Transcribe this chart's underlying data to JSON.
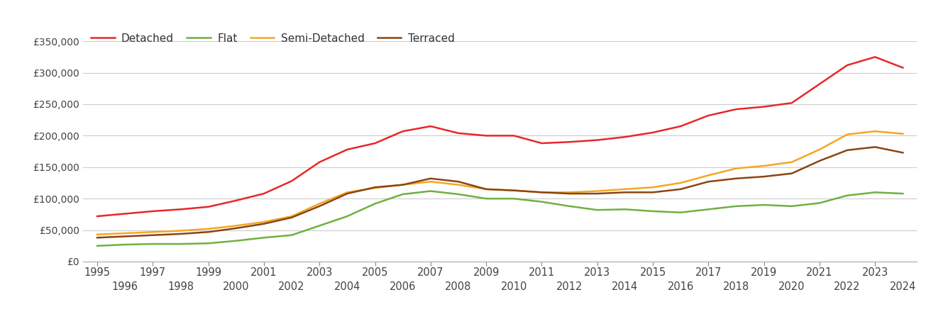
{
  "years": [
    1995,
    1996,
    1997,
    1998,
    1999,
    2000,
    2001,
    2002,
    2003,
    2004,
    2005,
    2006,
    2007,
    2008,
    2009,
    2010,
    2011,
    2012,
    2013,
    2014,
    2015,
    2016,
    2017,
    2018,
    2019,
    2020,
    2021,
    2022,
    2023,
    2024
  ],
  "detached": [
    72000,
    76000,
    80000,
    83000,
    87000,
    97000,
    108000,
    128000,
    158000,
    178000,
    188000,
    207000,
    215000,
    204000,
    200000,
    200000,
    188000,
    190000,
    193000,
    198000,
    205000,
    215000,
    232000,
    242000,
    246000,
    252000,
    282000,
    312000,
    325000,
    308000
  ],
  "flat": [
    25000,
    27000,
    28000,
    28000,
    29000,
    33000,
    38000,
    42000,
    57000,
    72000,
    92000,
    107000,
    112000,
    107000,
    100000,
    100000,
    95000,
    88000,
    82000,
    83000,
    80000,
    78000,
    83000,
    88000,
    90000,
    88000,
    93000,
    105000,
    110000,
    108000
  ],
  "semi_detached": [
    43000,
    45000,
    47000,
    49000,
    52000,
    57000,
    63000,
    72000,
    92000,
    110000,
    117000,
    122000,
    127000,
    122000,
    115000,
    113000,
    110000,
    110000,
    112000,
    115000,
    118000,
    125000,
    137000,
    148000,
    152000,
    158000,
    178000,
    202000,
    207000,
    203000
  ],
  "terraced": [
    38000,
    40000,
    42000,
    44000,
    47000,
    53000,
    60000,
    70000,
    88000,
    108000,
    118000,
    122000,
    132000,
    127000,
    115000,
    113000,
    110000,
    108000,
    108000,
    110000,
    110000,
    115000,
    127000,
    132000,
    135000,
    140000,
    160000,
    177000,
    182000,
    173000
  ],
  "line_colors": {
    "detached": "#e8272a",
    "flat": "#70b040",
    "semi_detached": "#f5a623",
    "terraced": "#8b4513"
  },
  "ylim": [
    0,
    375000
  ],
  "yticks": [
    0,
    50000,
    100000,
    150000,
    200000,
    250000,
    300000,
    350000
  ],
  "grid_color": "#cccccc",
  "line_width": 1.8
}
